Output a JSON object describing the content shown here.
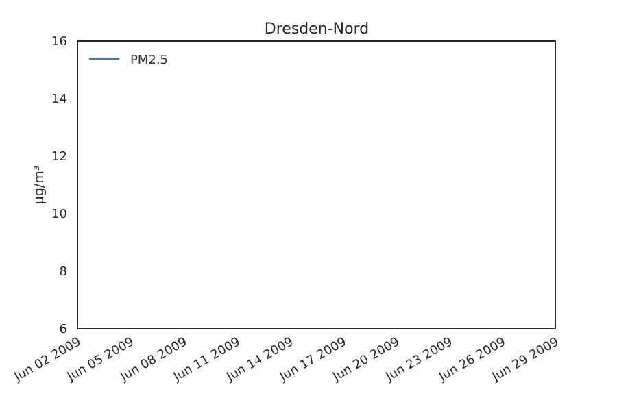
{
  "chart_data": {
    "type": "line",
    "title": "Dresden-Nord",
    "xlabel": "",
    "ylabel": "µg/m³",
    "ylim": [
      6,
      16
    ],
    "yticks": [
      6,
      8,
      10,
      12,
      14,
      16
    ],
    "xlim": [
      "2009-06-02",
      "2009-06-29"
    ],
    "xticks": [
      "2009-06-02",
      "2009-06-05",
      "2009-06-08",
      "2009-06-11",
      "2009-06-14",
      "2009-06-17",
      "2009-06-20",
      "2009-06-23",
      "2009-06-26",
      "2009-06-29"
    ],
    "xtick_labels": [
      "Jun 02 2009",
      "Jun 05 2009",
      "Jun 08 2009",
      "Jun 11 2009",
      "Jun 14 2009",
      "Jun 17 2009",
      "Jun 20 2009",
      "Jun 23 2009",
      "Jun 26 2009",
      "Jun 29 2009"
    ],
    "grid": false,
    "legend_position": "top-left",
    "series": [
      {
        "name": "PM2.5",
        "color": "#4c72b0",
        "x": [],
        "values": []
      }
    ]
  }
}
